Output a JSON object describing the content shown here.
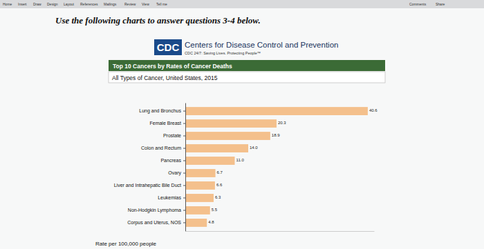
{
  "chart_data": {
    "type": "bar",
    "orientation": "horizontal",
    "title": "Top 10 Cancers by Rates of Cancer Deaths",
    "subtitle": "All Types of Cancer, United States, 2015",
    "xlabel": "Rate per 100,000 people",
    "categories": [
      "Lung and Bronchus",
      "Female Breast",
      "Prostate",
      "Colon and Rectum",
      "Pancreas",
      "Ovary",
      "Liver and Intrahepatic Bile Duct",
      "Leukemias",
      "Non-Hodgkin Lymphoma",
      "Corpus and Uterus, NOS"
    ],
    "values": [
      40.6,
      20.3,
      18.9,
      14.0,
      11.0,
      6.7,
      6.6,
      6.3,
      5.5,
      4.8
    ],
    "value_labels": [
      "40.6",
      "20.3",
      "18.9",
      "14.0",
      "11.0",
      "6.7",
      "6.6",
      "6.3",
      "5.5",
      "4.8"
    ],
    "color": "#f4c08c",
    "xlim": [
      0,
      42
    ],
    "data_labels": true,
    "tick_labels": "y",
    "annotations": {
      "instruction": "Use the following charts to answer questions 3-4 below.",
      "logo": "CDC",
      "org": "Centers for Disease Control and Prevention",
      "tagline": "CDC 24/7: Saving Lives. Protecting People™",
      "menu": [
        "Home",
        "Insert",
        "Draw",
        "Design",
        "Layout",
        "References",
        "Mailings",
        "Review",
        "View",
        "Tell me"
      ],
      "menu_right": [
        "Comments",
        "Share"
      ]
    }
  }
}
